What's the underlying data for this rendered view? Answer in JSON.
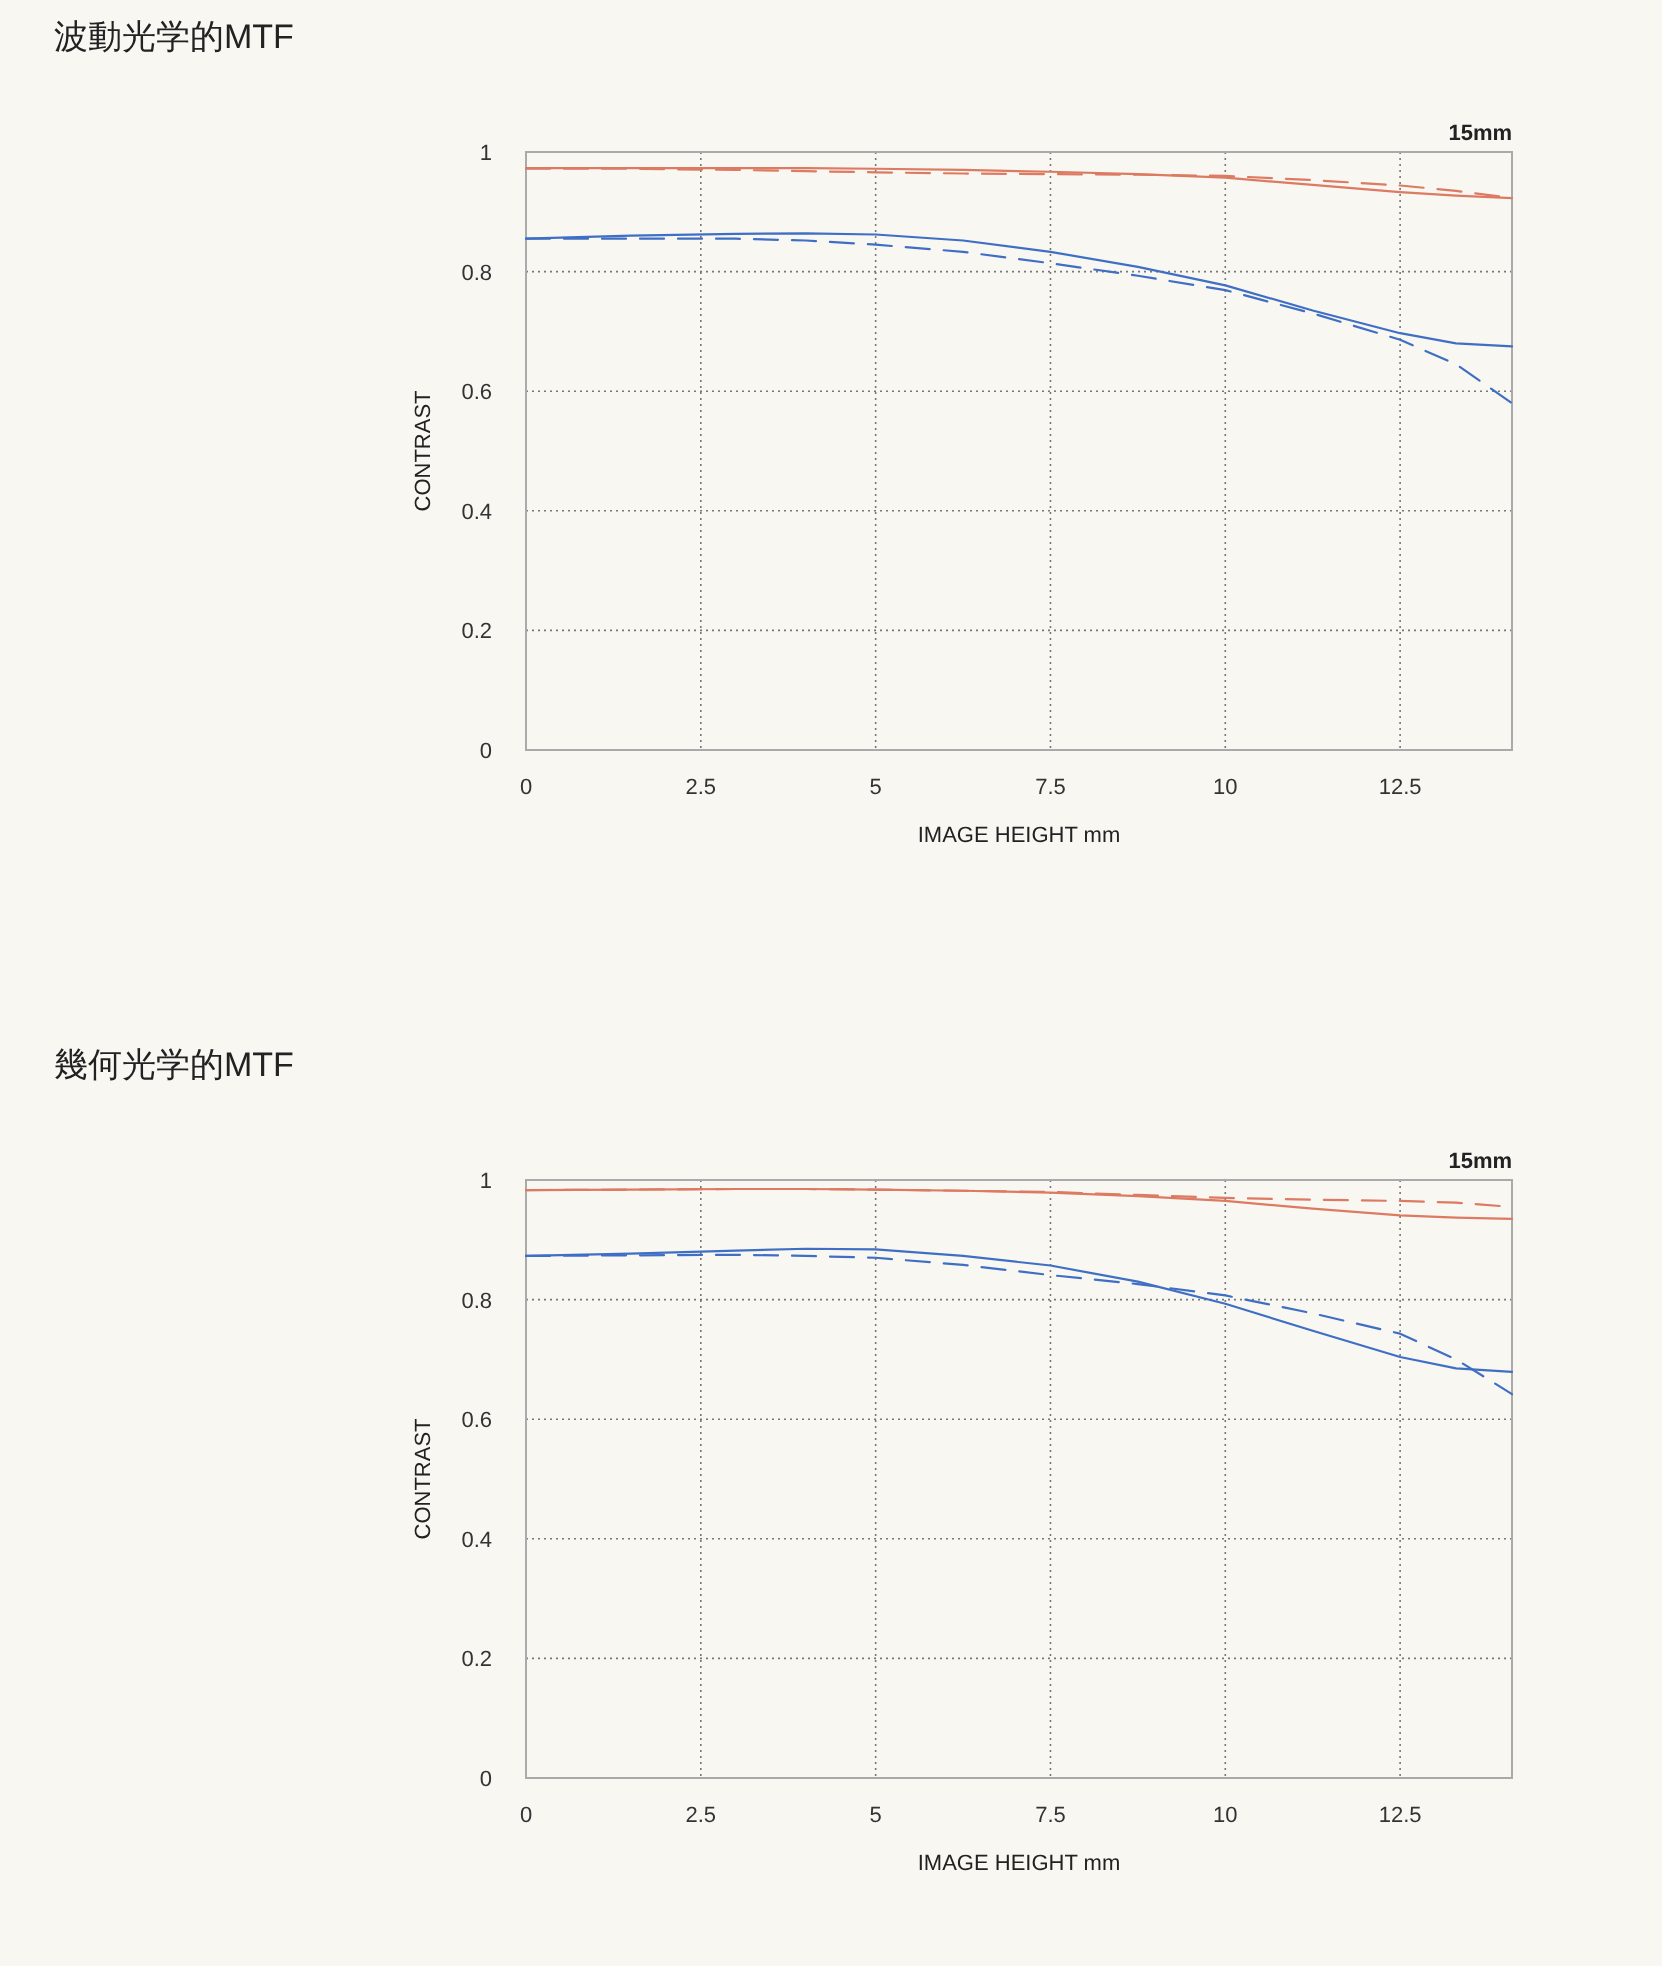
{
  "chart_data": [
    {
      "type": "line",
      "title": "波動光学的MTF",
      "xlabel": "IMAGE HEIGHT  mm",
      "ylabel": "CONTRAST",
      "annotations": [
        "15mm"
      ],
      "x": [
        0,
        1.5,
        3,
        4,
        5,
        6.25,
        7.5,
        8.75,
        10,
        11.25,
        12.5,
        13.3,
        14.1
      ],
      "xlim": [
        0,
        14.1
      ],
      "xticks": [
        0,
        2.5,
        5,
        7.5,
        10,
        12.5
      ],
      "ylim": [
        0,
        1
      ],
      "yticks": [
        0,
        0.2,
        0.4,
        0.6,
        0.8,
        1
      ],
      "grid": true,
      "marker": "none",
      "series": [
        {
          "color": "#dc7a62",
          "line_style": "solid",
          "values": [
            0.973,
            0.973,
            0.973,
            0.973,
            0.972,
            0.97,
            0.967,
            0.963,
            0.957,
            0.945,
            0.933,
            0.927,
            0.923
          ]
        },
        {
          "color": "#dc7a62",
          "line_style": "dashed",
          "values": [
            0.972,
            0.972,
            0.97,
            0.968,
            0.966,
            0.964,
            0.963,
            0.962,
            0.96,
            0.953,
            0.944,
            0.935,
            0.923
          ]
        },
        {
          "color": "#3f6fc4",
          "line_style": "solid",
          "values": [
            0.855,
            0.86,
            0.863,
            0.864,
            0.862,
            0.852,
            0.833,
            0.808,
            0.777,
            0.735,
            0.697,
            0.68,
            0.675
          ]
        },
        {
          "color": "#3f6fc4",
          "line_style": "dashed",
          "values": [
            0.855,
            0.855,
            0.855,
            0.852,
            0.845,
            0.833,
            0.814,
            0.793,
            0.769,
            0.73,
            0.686,
            0.645,
            0.58
          ]
        }
      ]
    },
    {
      "type": "line",
      "title": "幾何光学的MTF",
      "xlabel": "IMAGE HEIGHT  mm",
      "ylabel": "CONTRAST",
      "annotations": [
        "15mm"
      ],
      "x": [
        0,
        1.5,
        3,
        4,
        5,
        6.25,
        7.5,
        8.75,
        10,
        11.25,
        12.5,
        13.3,
        14.1
      ],
      "xlim": [
        0,
        14.1
      ],
      "xticks": [
        0,
        2.5,
        5,
        7.5,
        10,
        12.5
      ],
      "ylim": [
        0,
        1
      ],
      "yticks": [
        0,
        0.2,
        0.4,
        0.6,
        0.8,
        1
      ],
      "grid": true,
      "marker": "none",
      "series": [
        {
          "color": "#dc7a62",
          "line_style": "solid",
          "values": [
            0.983,
            0.984,
            0.985,
            0.985,
            0.984,
            0.982,
            0.979,
            0.973,
            0.965,
            0.952,
            0.941,
            0.937,
            0.935
          ]
        },
        {
          "color": "#dc7a62",
          "line_style": "dashed",
          "values": [
            0.983,
            0.984,
            0.985,
            0.985,
            0.984,
            0.982,
            0.98,
            0.975,
            0.97,
            0.967,
            0.965,
            0.962,
            0.955
          ]
        },
        {
          "color": "#3f6fc4",
          "line_style": "solid",
          "values": [
            0.873,
            0.877,
            0.882,
            0.885,
            0.884,
            0.873,
            0.857,
            0.83,
            0.793,
            0.748,
            0.704,
            0.685,
            0.679
          ]
        },
        {
          "color": "#3f6fc4",
          "line_style": "dashed",
          "values": [
            0.873,
            0.874,
            0.875,
            0.873,
            0.87,
            0.858,
            0.841,
            0.826,
            0.807,
            0.777,
            0.743,
            0.7,
            0.642
          ]
        }
      ]
    }
  ]
}
